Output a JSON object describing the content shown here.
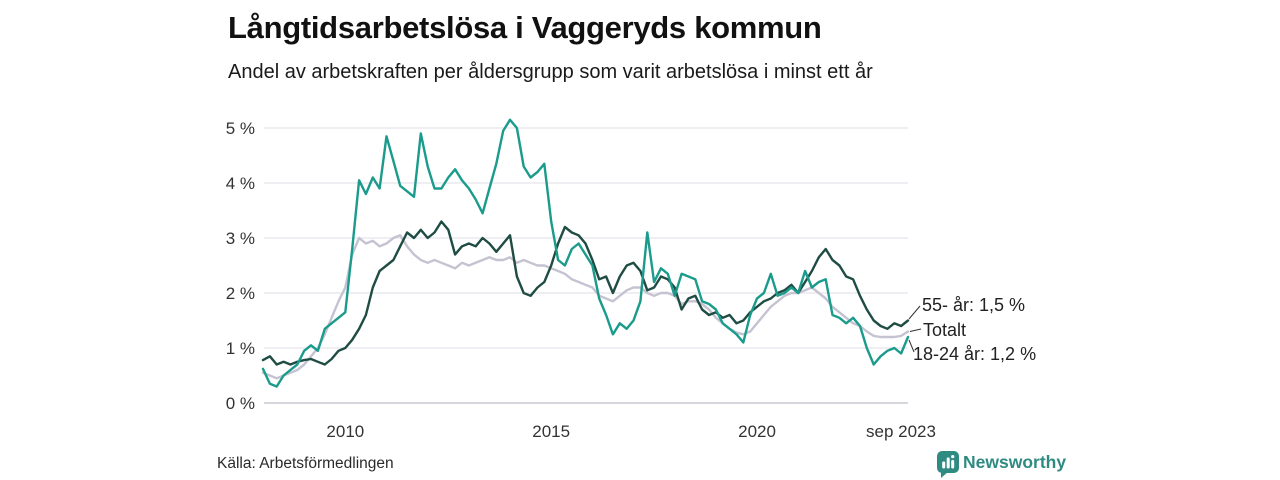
{
  "header": {
    "title": "Långtidsarbetslösa i Vaggeryds kommun",
    "subtitle": "Andel av arbetskraften per åldersgrupp som varit arbetslösa i minst ett år"
  },
  "footer": {
    "source": "Källa: Arbetsförmedlingen",
    "brand": "Newsworthy"
  },
  "chart_data": {
    "type": "line",
    "title": "Långtidsarbetslösa i Vaggeryds kommun",
    "subtitle": "Andel av arbetskraften per åldersgrupp som varit arbetslösa i minst ett år",
    "x_start": "2008-01",
    "x_end": "2023-09",
    "x_interval_months": 2,
    "grid": "horizontal",
    "ylim": [
      0,
      5.4
    ],
    "y_ticks": [
      "0 %",
      "1 %",
      "2 %",
      "3 %",
      "4 %",
      "5 %"
    ],
    "x_ticks": [
      {
        "label": "2010",
        "month_index": 24
      },
      {
        "label": "2015",
        "month_index": 84
      },
      {
        "label": "2020",
        "month_index": 144
      },
      {
        "label": "sep 2023",
        "month_index": 188
      }
    ],
    "colors": {
      "teal": "#1a9b8c",
      "dark_green": "#1f4c43",
      "gray": "#c5c3d1",
      "grid": "#e5e4ea",
      "axis_line": "#c9c8d2",
      "tick_text": "#333333",
      "annotation_text": "#222222",
      "brand_teal": "#2f8b82"
    },
    "series": [
      {
        "id": "totalt",
        "name": "Totalt",
        "end_label": "Totalt",
        "end_value": 1.3,
        "color": "#c5c3d1",
        "values": [
          0.55,
          0.5,
          0.45,
          0.5,
          0.55,
          0.6,
          0.7,
          0.85,
          1.0,
          1.25,
          1.55,
          1.85,
          2.1,
          2.7,
          3.0,
          2.9,
          2.95,
          2.85,
          2.9,
          3.0,
          3.05,
          2.85,
          2.7,
          2.6,
          2.55,
          2.6,
          2.55,
          2.5,
          2.45,
          2.55,
          2.5,
          2.55,
          2.6,
          2.65,
          2.6,
          2.6,
          2.65,
          2.55,
          2.6,
          2.55,
          2.5,
          2.5,
          2.45,
          2.4,
          2.35,
          2.25,
          2.2,
          2.15,
          2.1,
          1.95,
          1.9,
          1.85,
          1.95,
          2.05,
          2.1,
          2.1,
          2.0,
          1.95,
          2.0,
          2.0,
          1.95,
          1.8,
          1.85,
          1.85,
          1.8,
          1.7,
          1.55,
          1.45,
          1.35,
          1.28,
          1.25,
          1.3,
          1.45,
          1.6,
          1.75,
          1.85,
          1.95,
          2.0,
          2.0,
          2.05,
          2.1,
          2.0,
          1.9,
          1.75,
          1.65,
          1.55,
          1.45,
          1.4,
          1.3,
          1.22,
          1.2,
          1.2,
          1.2,
          1.22,
          1.3
        ]
      },
      {
        "id": "55",
        "name": "55- år",
        "end_label": "55- år: 1,5 %",
        "end_value": 1.5,
        "color": "#1f4c43",
        "values": [
          0.78,
          0.85,
          0.7,
          0.75,
          0.7,
          0.75,
          0.78,
          0.8,
          0.75,
          0.7,
          0.8,
          0.95,
          1.0,
          1.15,
          1.35,
          1.6,
          2.1,
          2.4,
          2.5,
          2.6,
          2.85,
          3.1,
          3.0,
          3.15,
          3.0,
          3.1,
          3.3,
          3.15,
          2.7,
          2.85,
          2.9,
          2.85,
          3.0,
          2.9,
          2.75,
          2.9,
          3.05,
          2.3,
          2.0,
          1.95,
          2.1,
          2.2,
          2.5,
          2.9,
          3.2,
          3.1,
          3.05,
          2.9,
          2.6,
          2.25,
          2.3,
          2.0,
          2.3,
          2.5,
          2.55,
          2.4,
          2.05,
          2.1,
          2.3,
          2.25,
          2.1,
          1.7,
          1.9,
          1.95,
          1.7,
          1.6,
          1.65,
          1.55,
          1.6,
          1.45,
          1.5,
          1.65,
          1.75,
          1.85,
          1.9,
          2.0,
          2.05,
          2.15,
          2.0,
          2.2,
          2.4,
          2.65,
          2.8,
          2.6,
          2.5,
          2.3,
          2.25,
          1.95,
          1.7,
          1.5,
          1.4,
          1.35,
          1.45,
          1.4,
          1.5
        ]
      },
      {
        "id": "18-24",
        "name": "18-24 år",
        "end_label": "18-24 år: 1,2 %",
        "end_value": 1.2,
        "color": "#1a9b8c",
        "values": [
          0.62,
          0.35,
          0.3,
          0.5,
          0.6,
          0.7,
          0.95,
          1.05,
          0.95,
          1.35,
          1.45,
          1.55,
          1.65,
          2.8,
          4.05,
          3.8,
          4.1,
          3.9,
          4.85,
          4.4,
          3.95,
          3.85,
          3.75,
          4.9,
          4.3,
          3.9,
          3.9,
          4.1,
          4.25,
          4.05,
          3.9,
          3.7,
          3.45,
          3.9,
          4.35,
          4.95,
          5.15,
          5.0,
          4.3,
          4.1,
          4.2,
          4.35,
          3.3,
          2.6,
          2.5,
          2.8,
          2.9,
          2.7,
          2.5,
          1.9,
          1.6,
          1.25,
          1.45,
          1.35,
          1.5,
          1.85,
          3.1,
          2.2,
          2.45,
          2.35,
          1.95,
          2.35,
          2.3,
          2.25,
          1.85,
          1.8,
          1.7,
          1.45,
          1.35,
          1.25,
          1.1,
          1.6,
          1.9,
          2.0,
          2.35,
          1.95,
          2.0,
          2.1,
          2.0,
          2.4,
          2.1,
          2.2,
          2.25,
          1.6,
          1.55,
          1.45,
          1.55,
          1.4,
          1.0,
          0.7,
          0.85,
          0.95,
          1.0,
          0.9,
          1.2
        ]
      }
    ]
  }
}
